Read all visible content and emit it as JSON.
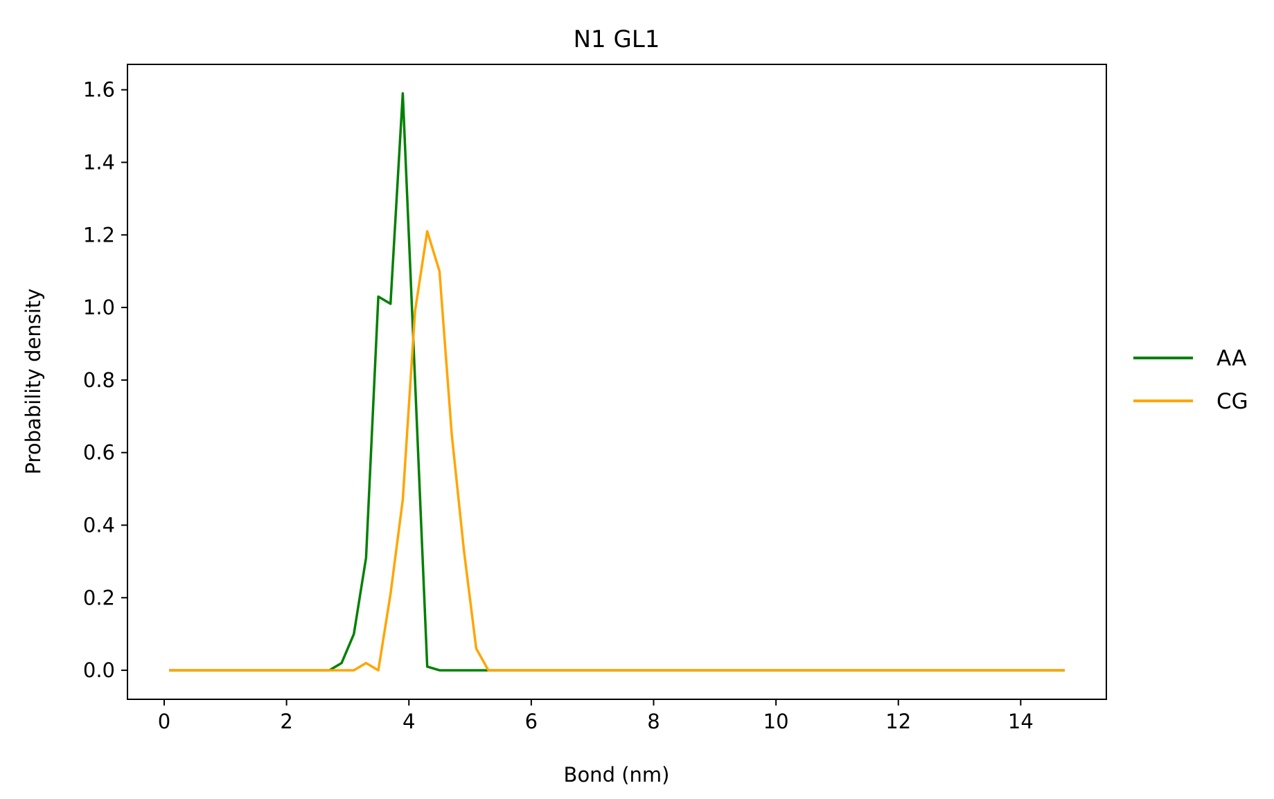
{
  "chart_data": {
    "type": "line",
    "title": "N1 GL1",
    "xlabel": "Bond (nm)",
    "ylabel": "Probability density",
    "xlim": [
      -0.6,
      15.4
    ],
    "ylim": [
      -0.08,
      1.67
    ],
    "xticks": [
      0,
      2,
      4,
      6,
      8,
      10,
      12,
      14
    ],
    "xtick_labels": [
      "0",
      "2",
      "4",
      "6",
      "8",
      "10",
      "12",
      "14"
    ],
    "yticks": [
      0.0,
      0.2,
      0.4,
      0.6,
      0.8,
      1.0,
      1.2,
      1.4,
      1.6
    ],
    "ytick_labels": [
      "0.0",
      "0.2",
      "0.4",
      "0.6",
      "0.8",
      "1.0",
      "1.2",
      "1.4",
      "1.6"
    ],
    "grid": false,
    "legend_position": "center-right outside",
    "series": [
      {
        "name": "AA",
        "color": "#008000",
        "x": [
          0.1,
          2.5,
          2.7,
          2.9,
          3.1,
          3.3,
          3.5,
          3.7,
          3.9,
          4.1,
          4.3,
          4.5,
          4.7,
          5.3,
          14.7
        ],
        "y": [
          0,
          0,
          0.0,
          0.02,
          0.1,
          0.31,
          1.03,
          1.01,
          1.59,
          0.8,
          0.01,
          0.0,
          0.0,
          0.0,
          0
        ]
      },
      {
        "name": "CG",
        "color": "#FFA500",
        "x": [
          0.1,
          3.1,
          3.3,
          3.5,
          3.7,
          3.9,
          4.1,
          4.3,
          4.5,
          4.7,
          4.9,
          5.1,
          5.3,
          14.7
        ],
        "y": [
          0,
          0,
          0.02,
          0.0,
          0.21,
          0.47,
          0.99,
          1.21,
          1.1,
          0.65,
          0.33,
          0.06,
          0.0,
          0
        ]
      }
    ]
  }
}
